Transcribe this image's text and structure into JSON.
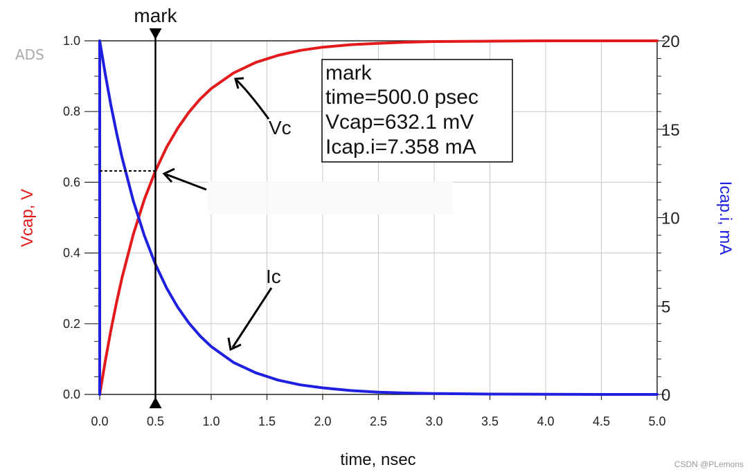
{
  "app_logo": "ADS",
  "watermark": "CSDN @PLemons",
  "marker": {
    "name": "mark",
    "label_lines": [
      "mark",
      "time=500.0 psec",
      "Vcap=632.1 mV",
      "Icap.i=7.358 mA"
    ],
    "x": 0.5,
    "y_left": 0.632
  },
  "annotations": [
    {
      "text": "Vc"
    },
    {
      "text": "Ic"
    }
  ],
  "chart_data": {
    "type": "line",
    "xlabel": "time, nsec",
    "ylabel_left": "Vcap, V",
    "ylabel_right": "Icap.i, mA",
    "xlim": [
      0,
      5.0
    ],
    "ylim_left": [
      0,
      1.0
    ],
    "ylim_right": [
      0,
      20
    ],
    "x_ticks": [
      "0.0",
      "0.5",
      "1.0",
      "1.5",
      "2.0",
      "2.5",
      "3.0",
      "3.5",
      "4.0",
      "4.5",
      "5.0"
    ],
    "y_left_ticks": [
      "0.0",
      "0.2",
      "0.4",
      "0.6",
      "0.8",
      "1.0"
    ],
    "y_right_ticks": [
      "0",
      "5",
      "10",
      "15",
      "20"
    ],
    "grid": true,
    "series": [
      {
        "name": "Vcap",
        "axis": "left",
        "color": "#e31a1c",
        "x": [
          0,
          0.05,
          0.1,
          0.15,
          0.2,
          0.3,
          0.4,
          0.5,
          0.6,
          0.7,
          0.8,
          0.9,
          1.0,
          1.2,
          1.4,
          1.6,
          1.8,
          2.0,
          2.25,
          2.5,
          2.75,
          3.0,
          3.5,
          4.0,
          4.5,
          5.0
        ],
        "values": [
          0,
          0.095,
          0.181,
          0.259,
          0.33,
          0.451,
          0.551,
          0.632,
          0.699,
          0.753,
          0.798,
          0.835,
          0.865,
          0.909,
          0.939,
          0.959,
          0.973,
          0.982,
          0.989,
          0.993,
          0.996,
          0.998,
          0.999,
          1.0,
          1.0,
          1.0
        ]
      },
      {
        "name": "Icap.i",
        "axis": "right",
        "color": "#1f1fe0",
        "x": [
          0,
          0.0,
          0.05,
          0.1,
          0.15,
          0.2,
          0.3,
          0.4,
          0.5,
          0.6,
          0.7,
          0.8,
          0.9,
          1.0,
          1.2,
          1.4,
          1.6,
          1.8,
          2.0,
          2.25,
          2.5,
          2.75,
          3.0,
          3.5,
          4.0,
          4.5,
          5.0
        ],
        "values": [
          0,
          20.0,
          18.1,
          16.37,
          14.82,
          13.41,
          10.98,
          8.99,
          7.358,
          6.02,
          4.93,
          4.04,
          3.31,
          2.71,
          1.81,
          1.22,
          0.81,
          0.54,
          0.37,
          0.22,
          0.13,
          0.08,
          0.05,
          0.02,
          0.01,
          0.0,
          0.0
        ]
      }
    ]
  }
}
